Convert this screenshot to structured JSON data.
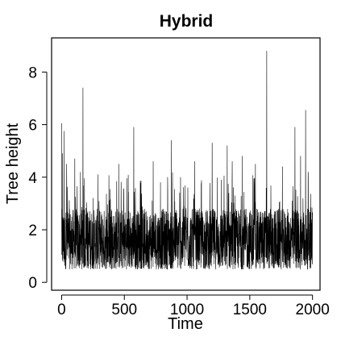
{
  "chart_data": {
    "type": "line",
    "title": "Hybrid",
    "xlabel": "Time",
    "ylabel": "Tree height",
    "xlim": [
      -80,
      2060
    ],
    "ylim": [
      -0.3,
      9.3
    ],
    "x_ticks": [
      0,
      500,
      1000,
      1500,
      2000
    ],
    "y_ticks": [
      0,
      2,
      4,
      6,
      8
    ],
    "grid": false,
    "series": [
      {
        "color": "#000000",
        "x_start": 0,
        "x_step": 1,
        "x_end": 2000,
        "baseline_range": [
          0.5,
          2.8
        ],
        "spikes": [
          {
            "x": 0,
            "y": 6.05
          },
          {
            "x": 8,
            "y": 4.9
          },
          {
            "x": 20,
            "y": 5.75
          },
          {
            "x": 40,
            "y": 4.5
          },
          {
            "x": 105,
            "y": 4.7
          },
          {
            "x": 170,
            "y": 7.4
          },
          {
            "x": 290,
            "y": 4.1
          },
          {
            "x": 455,
            "y": 4.5
          },
          {
            "x": 575,
            "y": 5.9
          },
          {
            "x": 730,
            "y": 4.6
          },
          {
            "x": 875,
            "y": 5.4
          },
          {
            "x": 1060,
            "y": 4.6
          },
          {
            "x": 1200,
            "y": 5.3
          },
          {
            "x": 1320,
            "y": 5.2
          },
          {
            "x": 1360,
            "y": 4.6
          },
          {
            "x": 1440,
            "y": 4.8
          },
          {
            "x": 1545,
            "y": 4.5
          },
          {
            "x": 1635,
            "y": 8.8
          },
          {
            "x": 1760,
            "y": 4.4
          },
          {
            "x": 1860,
            "y": 5.9
          },
          {
            "x": 1905,
            "y": 4.8
          },
          {
            "x": 1945,
            "y": 6.55
          },
          {
            "x": 1965,
            "y": 4.2
          }
        ]
      }
    ]
  }
}
